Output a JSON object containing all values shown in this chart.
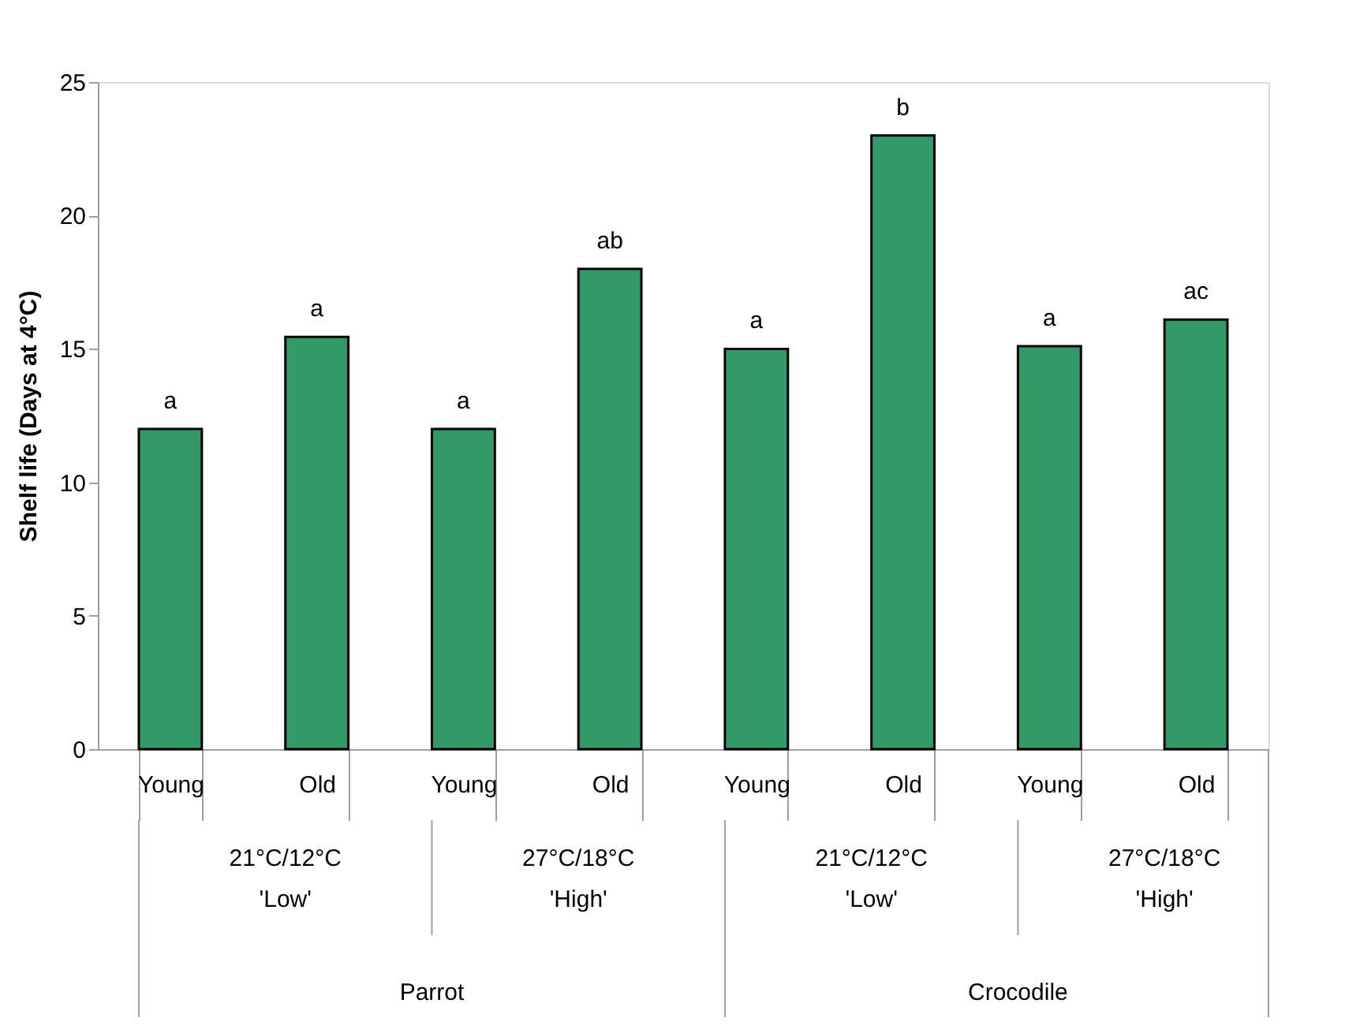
{
  "chart_data": {
    "type": "bar",
    "ylabel": "Shelf life (Days at 4°C)",
    "categories": [
      "Young",
      "Old",
      "Young",
      "Old",
      "Young",
      "Old",
      "Young",
      "Old"
    ],
    "values": [
      12,
      15.45,
      12,
      18,
      15,
      23,
      15.1,
      16.1
    ],
    "value_labels": [
      "a",
      "a",
      "a",
      "ab",
      "a",
      "b",
      "a",
      "ac"
    ],
    "color": "#339966",
    "ylim": [
      0,
      25
    ],
    "yticks": [
      0,
      5,
      10,
      15,
      20,
      25
    ],
    "annotations": [
      "21°C/12°C\n'Low'",
      "27°C/18°C\n'High'",
      "21°C/12°C\n'Low'",
      "27°C/18°C\n'High'",
      "Parrot",
      "Crocodile"
    ]
  }
}
